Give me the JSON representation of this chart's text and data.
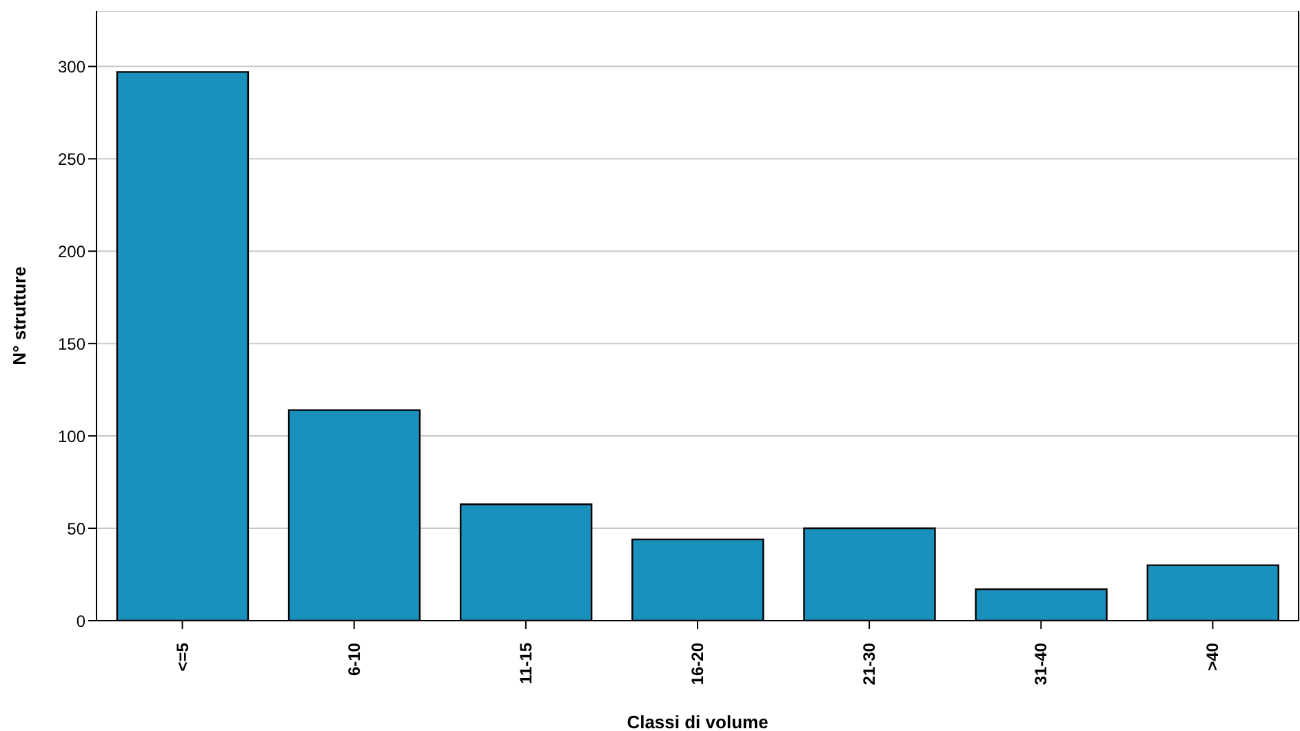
{
  "chart_data": {
    "type": "bar",
    "xlabel": "Classi di volume",
    "ylabel": "N° strutture",
    "categories": [
      "<=5",
      "6-10",
      "11-15",
      "16-20",
      "21-30",
      "31-40",
      ">40"
    ],
    "values": [
      297,
      114,
      63,
      44,
      50,
      17,
      30
    ],
    "color": "#1a90bd",
    "ylim": [
      0,
      330
    ],
    "yticks": [
      0,
      50,
      100,
      150,
      200,
      250,
      300
    ],
    "grid": "y"
  }
}
